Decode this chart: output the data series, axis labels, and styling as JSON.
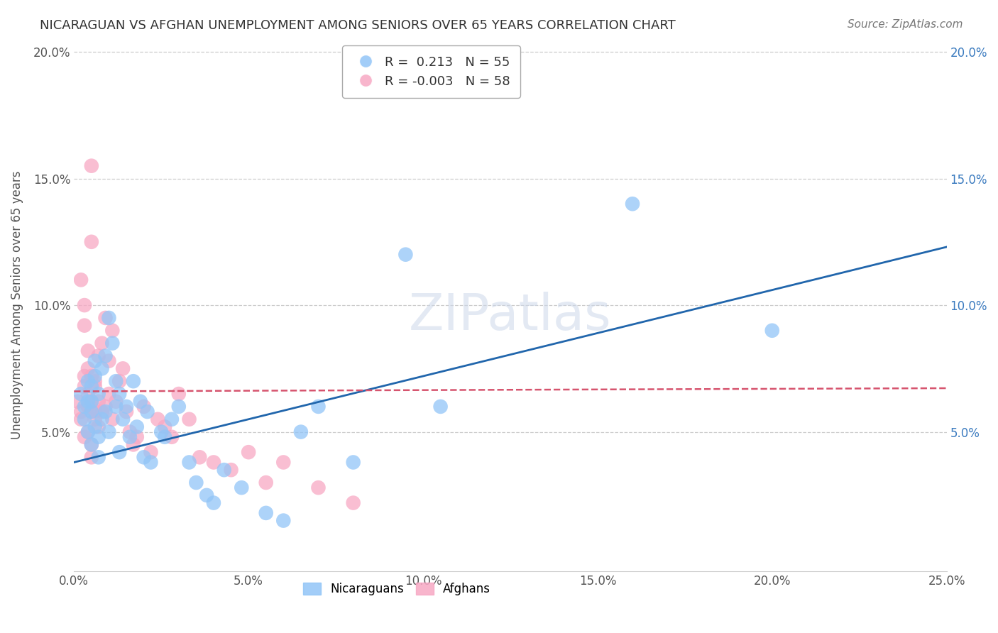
{
  "title": "NICARAGUAN VS AFGHAN UNEMPLOYMENT AMONG SENIORS OVER 65 YEARS CORRELATION CHART",
  "source": "Source: ZipAtlas.com",
  "ylabel": "Unemployment Among Seniors over 65 years",
  "nicaraguan_marker_color": "#92c5f7",
  "afghan_marker_color": "#f7a8c4",
  "trend_nicaraguan_color": "#2166ac",
  "trend_afghan_color": "#d6546e",
  "background_color": "#ffffff",
  "grid_color": "#cccccc",
  "xlim": [
    0.0,
    0.25
  ],
  "ylim": [
    -0.005,
    0.205
  ],
  "x_ticks": [
    0.0,
    0.05,
    0.1,
    0.15,
    0.2,
    0.25
  ],
  "x_tick_labels": [
    "0.0%",
    "5.0%",
    "10.0%",
    "15.0%",
    "20.0%",
    "25.0%"
  ],
  "y_ticks_left": [
    0.05,
    0.1,
    0.15,
    0.2
  ],
  "y_tick_labels_left": [
    "5.0%",
    "10.0%",
    "15.0%",
    "20.0%"
  ],
  "y_ticks_right": [
    0.05,
    0.1,
    0.15,
    0.2
  ],
  "y_tick_labels_right": [
    "5.0%",
    "10.0%",
    "15.0%",
    "20.0%"
  ],
  "legend_R_nic": "0.213",
  "legend_N_nic": "55",
  "legend_R_afg": "-0.003",
  "legend_N_afg": "58",
  "nic_x": [
    0.002,
    0.003,
    0.003,
    0.004,
    0.004,
    0.005,
    0.005,
    0.005,
    0.005,
    0.006,
    0.006,
    0.006,
    0.007,
    0.007,
    0.007,
    0.008,
    0.008,
    0.009,
    0.009,
    0.01,
    0.01,
    0.011,
    0.012,
    0.012,
    0.013,
    0.013,
    0.014,
    0.015,
    0.016,
    0.017,
    0.018,
    0.019,
    0.02,
    0.021,
    0.022,
    0.025,
    0.026,
    0.028,
    0.03,
    0.033,
    0.035,
    0.038,
    0.04,
    0.043,
    0.048,
    0.055,
    0.06,
    0.065,
    0.07,
    0.08,
    0.095,
    0.105,
    0.16,
    0.2,
    0.004
  ],
  "nic_y": [
    0.065,
    0.06,
    0.055,
    0.07,
    0.05,
    0.068,
    0.058,
    0.062,
    0.045,
    0.072,
    0.052,
    0.078,
    0.048,
    0.065,
    0.04,
    0.075,
    0.055,
    0.08,
    0.058,
    0.095,
    0.05,
    0.085,
    0.06,
    0.07,
    0.065,
    0.042,
    0.055,
    0.06,
    0.048,
    0.07,
    0.052,
    0.062,
    0.04,
    0.058,
    0.038,
    0.05,
    0.048,
    0.055,
    0.06,
    0.038,
    0.03,
    0.025,
    0.022,
    0.035,
    0.028,
    0.018,
    0.015,
    0.05,
    0.06,
    0.038,
    0.12,
    0.06,
    0.14,
    0.09,
    0.062
  ],
  "afg_x": [
    0.001,
    0.002,
    0.002,
    0.003,
    0.003,
    0.003,
    0.004,
    0.004,
    0.004,
    0.004,
    0.005,
    0.005,
    0.005,
    0.005,
    0.005,
    0.005,
    0.006,
    0.006,
    0.006,
    0.007,
    0.007,
    0.007,
    0.008,
    0.008,
    0.009,
    0.009,
    0.01,
    0.01,
    0.011,
    0.011,
    0.012,
    0.013,
    0.014,
    0.015,
    0.016,
    0.017,
    0.018,
    0.02,
    0.022,
    0.024,
    0.026,
    0.028,
    0.03,
    0.033,
    0.036,
    0.04,
    0.045,
    0.05,
    0.055,
    0.06,
    0.07,
    0.08,
    0.002,
    0.003,
    0.003,
    0.004,
    0.005,
    0.006
  ],
  "afg_y": [
    0.062,
    0.058,
    0.055,
    0.068,
    0.072,
    0.048,
    0.065,
    0.06,
    0.05,
    0.075,
    0.155,
    0.125,
    0.062,
    0.058,
    0.072,
    0.045,
    0.07,
    0.068,
    0.055,
    0.08,
    0.052,
    0.062,
    0.085,
    0.058,
    0.095,
    0.06,
    0.065,
    0.078,
    0.055,
    0.09,
    0.062,
    0.07,
    0.075,
    0.058,
    0.05,
    0.045,
    0.048,
    0.06,
    0.042,
    0.055,
    0.052,
    0.048,
    0.065,
    0.055,
    0.04,
    0.038,
    0.035,
    0.042,
    0.03,
    0.038,
    0.028,
    0.022,
    0.11,
    0.1,
    0.092,
    0.082,
    0.04,
    0.058
  ]
}
